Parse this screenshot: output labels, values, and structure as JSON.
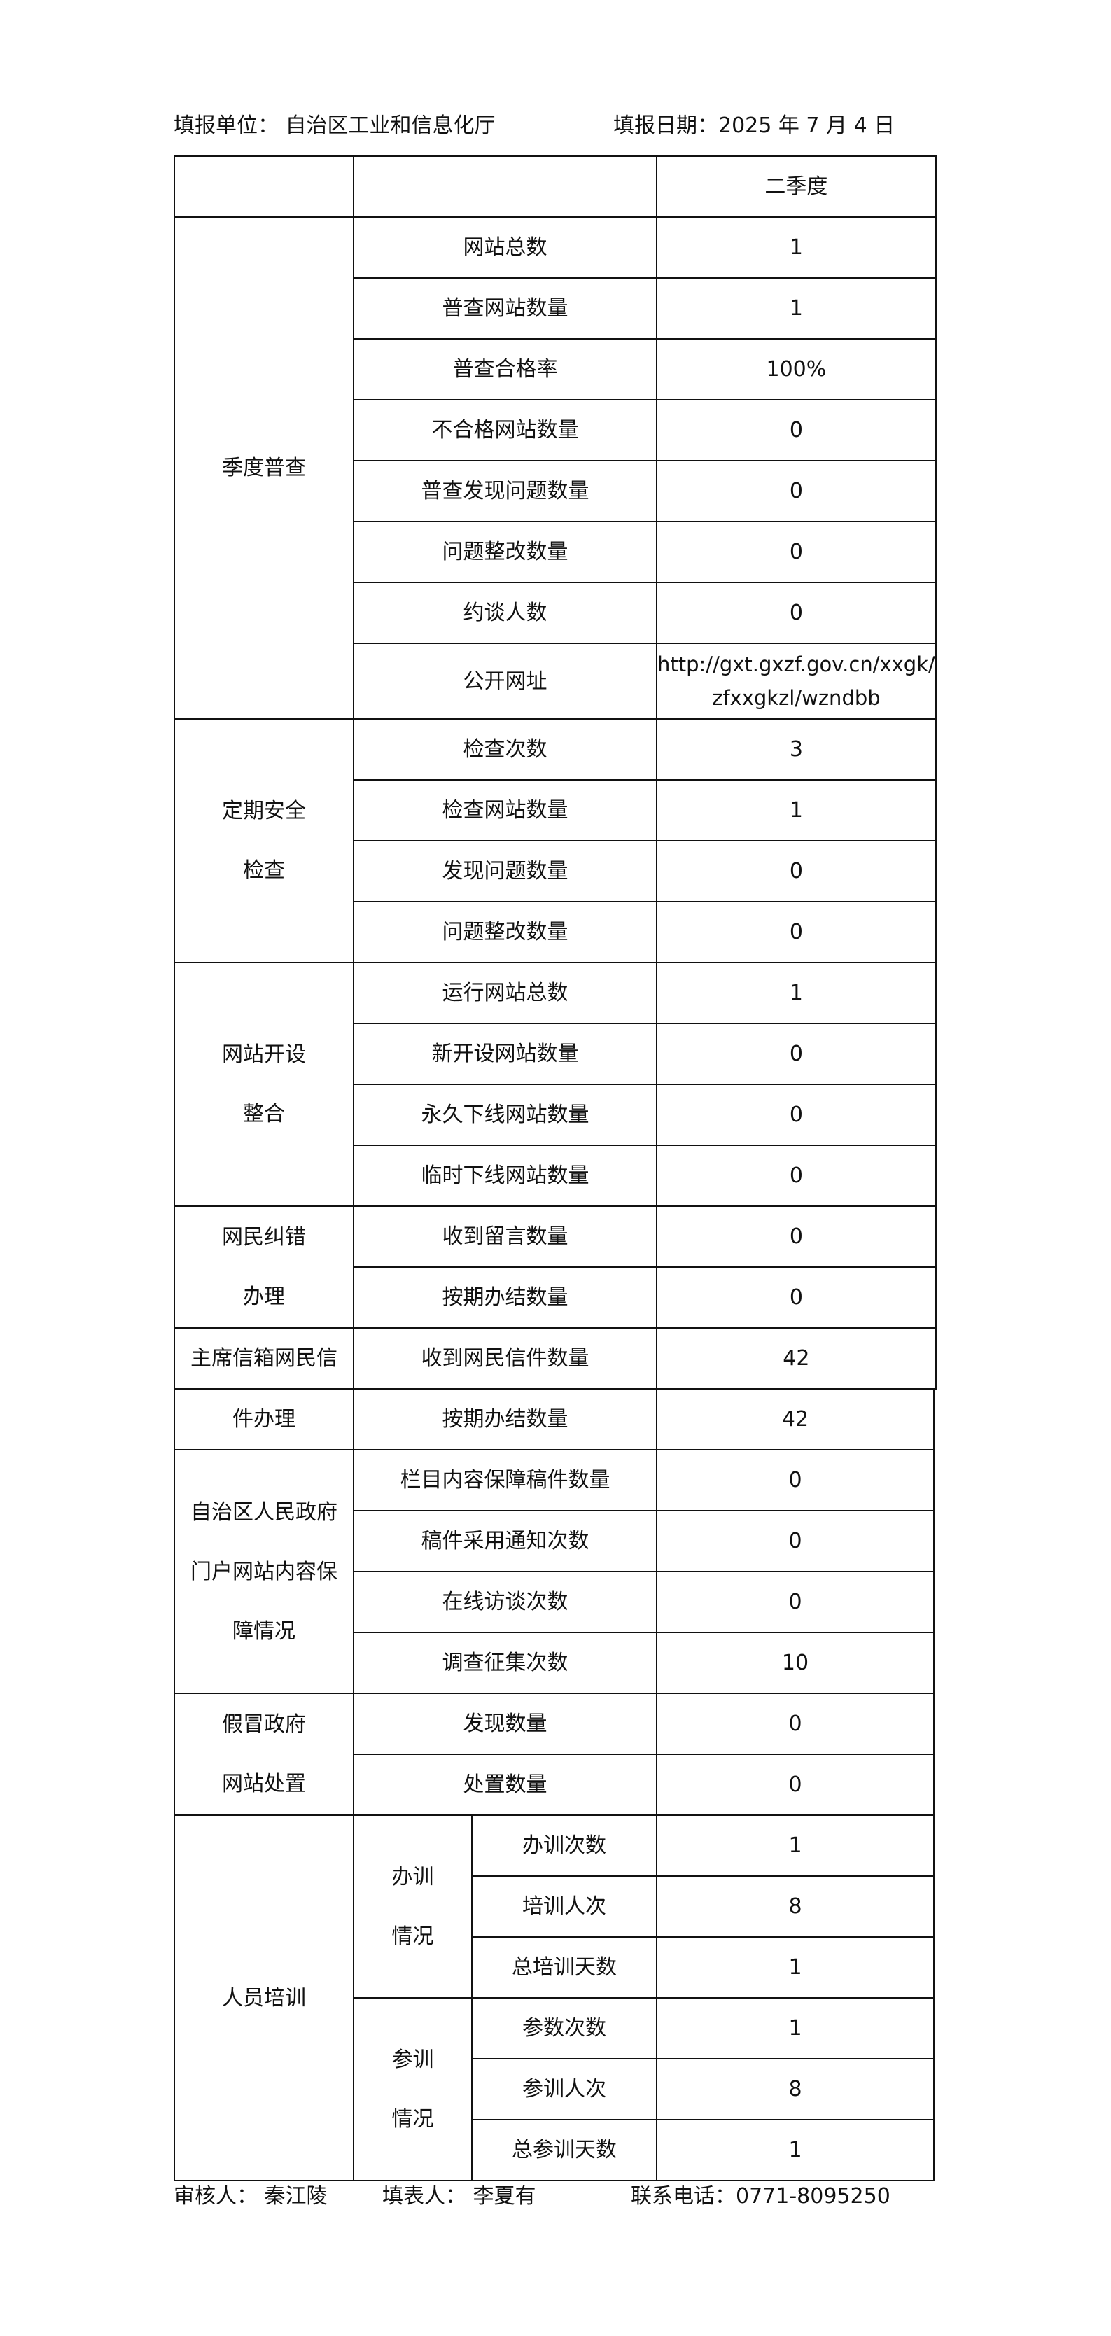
{
  "header": {
    "unit_label": "填报单位：",
    "unit_value": "自治区工业和信息化厅",
    "date_label": "填报日期：",
    "date_value": "2025 年 7 月 4 日"
  },
  "table_header": {
    "period": "二季度"
  },
  "groups_part1": [
    {
      "label": [
        "季度普查"
      ],
      "rows": [
        {
          "item": "网站总数",
          "value": "1"
        },
        {
          "item": "普查网站数量",
          "value": "1"
        },
        {
          "item": "普查合格率",
          "value": "100%"
        },
        {
          "item": "不合格网站数量",
          "value": "0"
        },
        {
          "item": "普查发现问题数量",
          "value": "0"
        },
        {
          "item": "问题整改数量",
          "value": "0"
        },
        {
          "item": "约谈人数",
          "value": "0"
        },
        {
          "item": "公开网址",
          "value": [
            "http://gxt.gxzf.gov.cn/xxgk/",
            "zfxxgkzl/wzndbb"
          ]
        }
      ]
    },
    {
      "label": [
        "定期安全",
        "检查"
      ],
      "rows": [
        {
          "item": "检查次数",
          "value": "3"
        },
        {
          "item": "检查网站数量",
          "value": "1"
        },
        {
          "item": "发现问题数量",
          "value": "0"
        },
        {
          "item": "问题整改数量",
          "value": "0"
        }
      ]
    },
    {
      "label": [
        "网站开设",
        "整合"
      ],
      "rows": [
        {
          "item": "运行网站总数",
          "value": "1"
        },
        {
          "item": "新开设网站数量",
          "value": "0"
        },
        {
          "item": "永久下线网站数量",
          "value": "0"
        },
        {
          "item": "临时下线网站数量",
          "value": "0"
        }
      ]
    },
    {
      "label": [
        "网民纠错",
        "办理"
      ],
      "rows": [
        {
          "item": "收到留言数量",
          "value": "0"
        },
        {
          "item": "按期办结数量",
          "value": "0"
        }
      ]
    },
    {
      "label": [
        "主席信箱网民信"
      ],
      "rows": [
        {
          "item": "收到网民信件数量",
          "value": "42"
        }
      ]
    }
  ],
  "groups_part2": [
    {
      "label": [
        "件办理"
      ],
      "rows": [
        {
          "item": "按期办结数量",
          "value": "42"
        }
      ]
    },
    {
      "label": [
        "自治区人民政府",
        "门户网站内容保",
        "障情况"
      ],
      "rows": [
        {
          "item": "栏目内容保障稿件数量",
          "value": "0"
        },
        {
          "item": "稿件采用通知次数",
          "value": "0"
        },
        {
          "item": "在线访谈次数",
          "value": "0"
        },
        {
          "item": "调查征集次数",
          "value": "10"
        }
      ]
    },
    {
      "label": [
        "假冒政府",
        "网站处置"
      ],
      "rows": [
        {
          "item": "发现数量",
          "value": "0"
        },
        {
          "item": "处置数量",
          "value": "0"
        }
      ]
    }
  ],
  "training": {
    "label": "人员培训",
    "subgroups": [
      {
        "label": [
          "办训",
          "情况"
        ],
        "rows": [
          {
            "item": "办训次数",
            "value": "1"
          },
          {
            "item": "培训人次",
            "value": "8"
          },
          {
            "item": "总培训天数",
            "value": "1"
          }
        ]
      },
      {
        "label": [
          "参训",
          "情况"
        ],
        "rows": [
          {
            "item": "参数次数",
            "value": "1"
          },
          {
            "item": "参训人次",
            "value": "8"
          },
          {
            "item": "总参训天数",
            "value": "1"
          }
        ]
      }
    ]
  },
  "footer": {
    "reviewer_label": "审核人：",
    "reviewer_value": "秦江陵",
    "filler_label": "填表人：",
    "filler_value": "李夏有",
    "phone_label": "联系电话：",
    "phone_value": "0771-8095250"
  }
}
